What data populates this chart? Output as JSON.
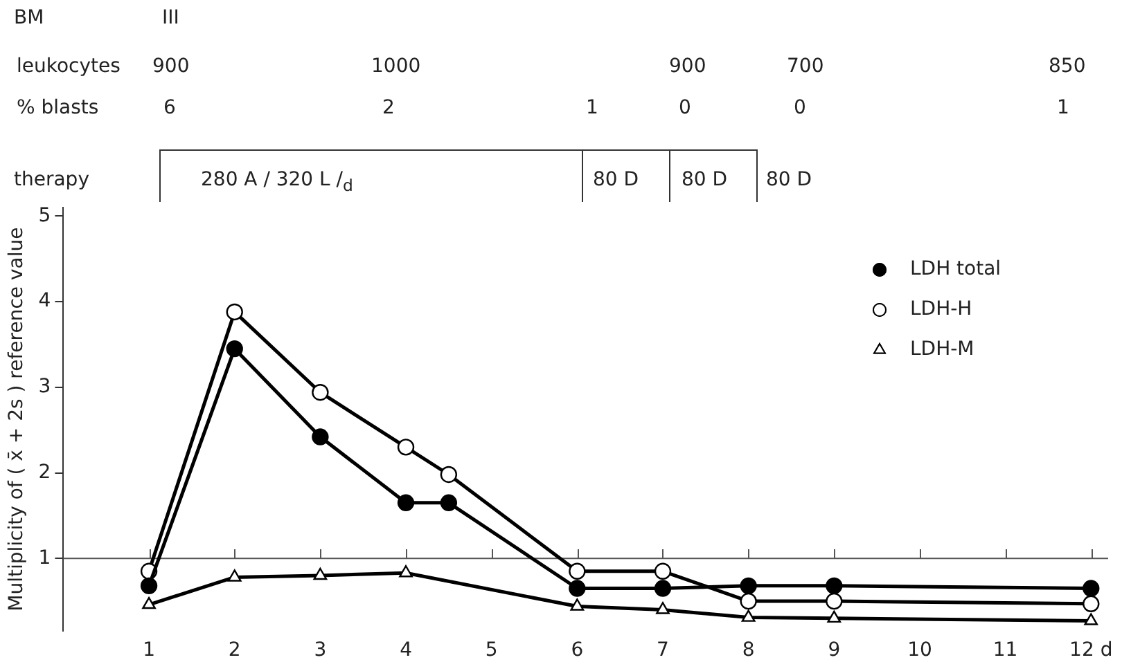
{
  "chart_data": {
    "type": "line",
    "ylabel": "Multiplicity of ( x̄ + 2s ) reference value",
    "x": [
      1,
      2,
      3,
      4,
      4.5,
      6,
      7,
      8,
      9,
      12
    ],
    "series": [
      {
        "name": "LDH total",
        "color": "#000000",
        "marker": "circle",
        "colors": [
          "#000000",
          "#000000",
          "#000000",
          "#000000",
          "#000000",
          "#000000",
          "#000000",
          "#000000",
          "#000000",
          "#000000"
        ],
        "values": [
          0.68,
          3.45,
          2.42,
          1.65,
          1.65,
          0.65,
          0.65,
          0.68,
          0.68,
          0.65
        ]
      },
      {
        "name": "LDH-H",
        "color": "#000000",
        "marker": "circle",
        "colors": [
          "#ffffff",
          "#ffffff",
          "#ffffff",
          "#ffffff",
          "#ffffff",
          "#ffffff",
          "#ffffff",
          "#ffffff",
          "#ffffff",
          "#ffffff"
        ],
        "values": [
          0.85,
          3.88,
          2.94,
          2.3,
          1.98,
          0.85,
          0.85,
          0.5,
          0.5,
          0.47
        ]
      },
      {
        "name": "LDH-M",
        "color": "#000000",
        "marker": "triangle",
        "colors": [
          "#ffffff",
          "#ffffff",
          "#ffffff",
          "#ffffff",
          "#ffffff",
          "#ffffff",
          "#ffffff",
          "#ffffff",
          "#ffffff"
        ],
        "x": [
          1,
          2,
          3,
          4,
          6,
          7,
          8,
          9,
          12
        ],
        "values": [
          0.46,
          0.78,
          0.8,
          0.83,
          0.44,
          0.4,
          0.31,
          0.3,
          0.27
        ]
      }
    ],
    "xlim": [
      0,
      12.2
    ],
    "xticks": [
      1,
      2,
      3,
      4,
      5,
      6,
      7,
      8,
      9,
      10,
      11,
      {
        "value": 12,
        "label": "12 d"
      }
    ],
    "ylim": [
      0.15,
      5.1
    ],
    "yticks": [
      1,
      2,
      3,
      4,
      5
    ],
    "ref_lines": [
      {
        "axis": "y",
        "value": 1,
        "color": "#555555"
      }
    ],
    "grid": false,
    "legend": "top right",
    "line_style": "solid",
    "annotations": [
      "BM",
      "III",
      "leukocytes",
      "900",
      "1000",
      "900",
      "700",
      "850",
      "% blasts",
      "6",
      "2",
      "1",
      "0",
      "0",
      "1",
      "therapy",
      "280 A / 320 L /$_{d}$",
      "80 D",
      "80 D",
      "80 D"
    ]
  }
}
